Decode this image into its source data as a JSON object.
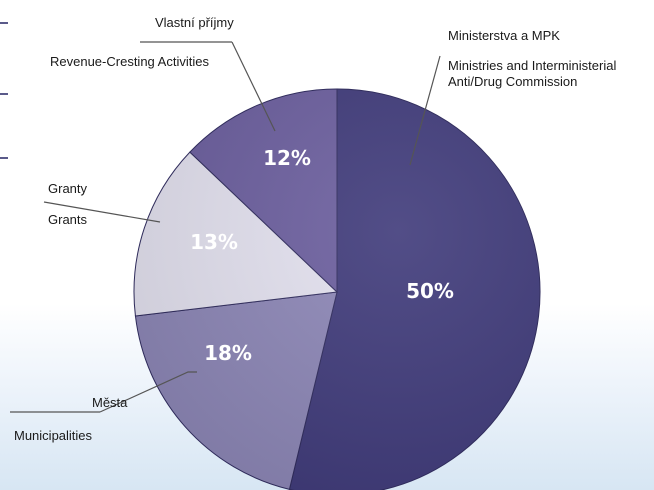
{
  "chart_data": {
    "type": "pie",
    "slices": [
      {
        "label_cz": "Ministerstva a MPK",
        "label_en": [
          "Ministries and Interministerial",
          "Anti/Drug Commission"
        ],
        "value": 50,
        "display": "50%",
        "color": "#3f3a7a",
        "text_color": "#ffffff"
      },
      {
        "label_cz": "Města",
        "label_en": [
          "Municipalities"
        ],
        "value": 18,
        "display": "18%",
        "color": "#8c86b6",
        "text_color": "#ffffff"
      },
      {
        "label_cz": "Granty",
        "label_en": [
          "Grants"
        ],
        "value": 13,
        "display": "13%",
        "color": "#e3e1ef",
        "text_color": "#ffffff"
      },
      {
        "label_cz": "Vlastní příjmy",
        "label_en": [
          "Revenue-Cresting Activities"
        ],
        "value": 12,
        "display": "12%",
        "color": "#6b5e9e",
        "text_color": "#ffffff"
      }
    ],
    "start_angle_deg": 0,
    "direction": "clockwise"
  }
}
